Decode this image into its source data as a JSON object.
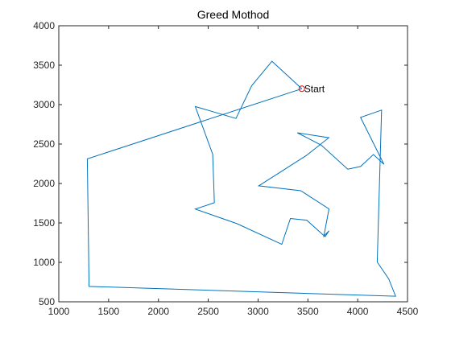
{
  "chart_data": {
    "type": "line",
    "title": "Greed Mothod",
    "xlabel": "",
    "ylabel": "",
    "xlim": [
      1000,
      4500
    ],
    "ylim": [
      500,
      4000
    ],
    "x_ticks": [
      1000,
      1500,
      2000,
      2500,
      3000,
      3500,
      4000,
      4500
    ],
    "y_ticks": [
      500,
      1000,
      1500,
      2000,
      2500,
      3000,
      3500,
      4000
    ],
    "grid": false,
    "series": [
      {
        "color": "#0072BD",
        "x": [
          3439,
          3140,
          2936,
          2778,
          2370,
          2545,
          2562,
          2370,
          2788,
          3238,
          3325,
          3489,
          3673,
          3712,
          3660,
          3712,
          3429,
          3007,
          3486,
          3710,
          3394,
          3635,
          3900,
          4029,
          4158,
          4263,
          4029,
          4240,
          4196,
          4312,
          4380,
          1304,
          1286,
          3439
        ],
        "y": [
          3201,
          3550,
          3240,
          2824,
          2976,
          2370,
          1756,
          1676,
          1491,
          1229,
          1556,
          1535,
          1325,
          1399,
          1332,
          1678,
          1908,
          1970,
          2356,
          2581,
          2643,
          2486,
          2182,
          2215,
          2367,
          2244,
          2838,
          2931,
          1004,
          790,
          570,
          695,
          2312,
          3201
        ]
      }
    ],
    "annotations": [
      {
        "label": "Start",
        "x": 3439,
        "y": 3201,
        "marker": "circle",
        "color": "#FF0000"
      }
    ]
  }
}
